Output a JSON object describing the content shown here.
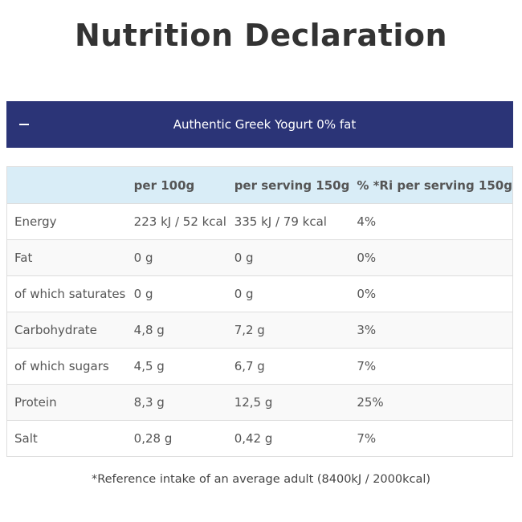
{
  "page": {
    "title": "Nutrition Declaration"
  },
  "accordion": {
    "toggle_symbol": "−",
    "title": "Authentic Greek Yogurt 0% fat"
  },
  "table": {
    "headers": [
      "",
      "per 100g",
      "per serving 150g",
      "% *Ri per serving 150g"
    ],
    "rows": [
      [
        "Energy",
        "223 kJ / 52 kcal",
        "335 kJ / 79 kcal",
        "4%"
      ],
      [
        "Fat",
        "0 g",
        "0 g",
        "0%"
      ],
      [
        "of which saturates",
        "0 g",
        "0 g",
        "0%"
      ],
      [
        "Carbohydrate",
        "4,8 g",
        "7,2 g",
        "3%"
      ],
      [
        "of which sugars",
        "4,5 g",
        "6,7 g",
        "7%"
      ],
      [
        "Protein",
        "8,3 g",
        "12,5 g",
        "25%"
      ],
      [
        "Salt",
        "0,28 g",
        "0,42 g",
        "7%"
      ]
    ]
  },
  "footnote": "*Reference intake of an average adult (8400kJ / 2000kcal)",
  "colors": {
    "accordion_bg": "#2b3477",
    "table_header_bg": "#d9edf7"
  }
}
